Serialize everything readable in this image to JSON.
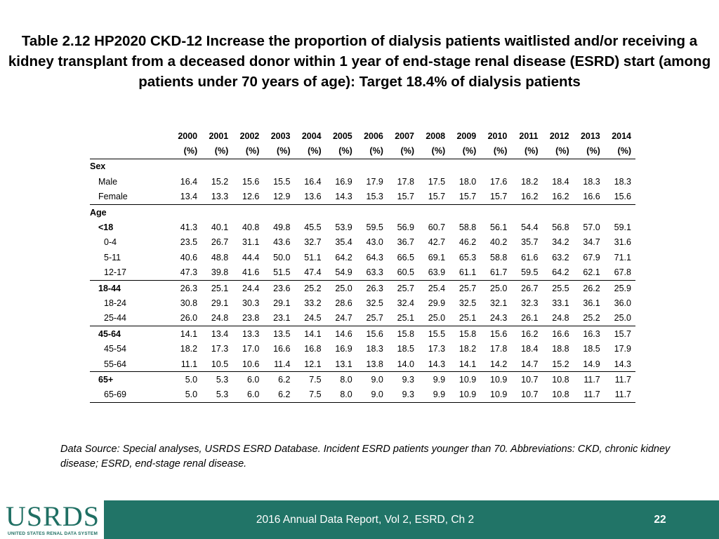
{
  "title": "Table 2.12  HP2020 CKD-12 Increase the proportion of dialysis patients waitlisted and/or receiving a kidney transplant from a deceased donor within 1 year of end-stage renal disease (ESRD) start (among patients under 70 years of age): Target 18.4% of dialysis patients",
  "table": {
    "years": [
      "2000",
      "2001",
      "2002",
      "2003",
      "2004",
      "2005",
      "2006",
      "2007",
      "2008",
      "2009",
      "2010",
      "2011",
      "2012",
      "2013",
      "2014"
    ],
    "unit": "(%)",
    "sections": [
      {
        "label": "Sex",
        "rows": [
          {
            "label": "Male",
            "values": [
              "16.4",
              "15.2",
              "15.6",
              "15.5",
              "16.4",
              "16.9",
              "17.9",
              "17.8",
              "17.5",
              "18.0",
              "17.6",
              "18.2",
              "18.4",
              "18.3",
              "18.3"
            ]
          },
          {
            "label": "Female",
            "values": [
              "13.4",
              "13.3",
              "12.6",
              "12.9",
              "13.6",
              "14.3",
              "15.3",
              "15.7",
              "15.7",
              "15.7",
              "15.7",
              "16.2",
              "16.2",
              "16.6",
              "15.6"
            ]
          }
        ]
      },
      {
        "label": "Age",
        "rows": [
          {
            "label": "<18",
            "values": [
              "41.3",
              "40.1",
              "40.8",
              "49.8",
              "45.5",
              "53.9",
              "59.5",
              "56.9",
              "60.7",
              "58.8",
              "56.1",
              "54.4",
              "56.8",
              "57.0",
              "59.1"
            ]
          },
          {
            "label": "0-4",
            "values": [
              "23.5",
              "26.7",
              "31.1",
              "43.6",
              "32.7",
              "35.4",
              "43.0",
              "36.7",
              "42.7",
              "46.2",
              "40.2",
              "35.7",
              "34.2",
              "34.7",
              "31.6"
            ]
          },
          {
            "label": "5-11",
            "values": [
              "40.6",
              "48.8",
              "44.4",
              "50.0",
              "51.1",
              "64.2",
              "64.3",
              "66.5",
              "69.1",
              "65.3",
              "58.8",
              "61.6",
              "63.2",
              "67.9",
              "71.1"
            ]
          },
          {
            "label": "12-17",
            "values": [
              "47.3",
              "39.8",
              "41.6",
              "51.5",
              "47.4",
              "54.9",
              "63.3",
              "60.5",
              "63.9",
              "61.1",
              "61.7",
              "59.5",
              "64.2",
              "62.1",
              "67.8"
            ]
          },
          {
            "label": "18-44",
            "values": [
              "26.3",
              "25.1",
              "24.4",
              "23.6",
              "25.2",
              "25.0",
              "26.3",
              "25.7",
              "25.4",
              "25.7",
              "25.0",
              "26.7",
              "25.5",
              "26.2",
              "25.9"
            ]
          },
          {
            "label": "18-24",
            "values": [
              "30.8",
              "29.1",
              "30.3",
              "29.1",
              "33.2",
              "28.6",
              "32.5",
              "32.4",
              "29.9",
              "32.5",
              "32.1",
              "32.3",
              "33.1",
              "36.1",
              "36.0"
            ]
          },
          {
            "label": "25-44",
            "values": [
              "26.0",
              "24.8",
              "23.8",
              "23.1",
              "24.5",
              "24.7",
              "25.7",
              "25.1",
              "25.0",
              "25.1",
              "24.3",
              "26.1",
              "24.8",
              "25.2",
              "25.0"
            ]
          },
          {
            "label": "45-64",
            "values": [
              "14.1",
              "13.4",
              "13.3",
              "13.5",
              "14.1",
              "14.6",
              "15.6",
              "15.8",
              "15.5",
              "15.8",
              "15.6",
              "16.2",
              "16.6",
              "16.3",
              "15.7"
            ]
          },
          {
            "label": "45-54",
            "values": [
              "18.2",
              "17.3",
              "17.0",
              "16.6",
              "16.8",
              "16.9",
              "18.3",
              "18.5",
              "17.3",
              "18.2",
              "17.8",
              "18.4",
              "18.8",
              "18.5",
              "17.9"
            ]
          },
          {
            "label": "55-64",
            "values": [
              "11.1",
              "10.5",
              "10.6",
              "11.4",
              "12.1",
              "13.1",
              "13.8",
              "14.0",
              "14.3",
              "14.1",
              "14.2",
              "14.7",
              "15.2",
              "14.9",
              "14.3"
            ]
          },
          {
            "label": "65+",
            "values": [
              "5.0",
              "5.3",
              "6.0",
              "6.2",
              "7.5",
              "8.0",
              "9.0",
              "9.3",
              "9.9",
              "10.9",
              "10.9",
              "10.7",
              "10.8",
              "11.7",
              "11.7"
            ]
          },
          {
            "label": "65-69",
            "values": [
              "5.0",
              "5.3",
              "6.0",
              "6.2",
              "7.5",
              "8.0",
              "9.0",
              "9.3",
              "9.9",
              "10.9",
              "10.9",
              "10.7",
              "10.8",
              "11.7",
              "11.7"
            ]
          }
        ]
      }
    ]
  },
  "source": "Data Source: Special analyses, USRDS ESRD Database. Incident ESRD patients younger than 70. Abbreviations: CKD, chronic kidney disease; ESRD, end-stage renal disease.",
  "footer": {
    "logo": "USRDS",
    "logo_subtitle": "UNITED STATES RENAL DATA SYSTEM",
    "text": "2016 Annual Data Report, Vol 2, ESRD, Ch 2",
    "page_number": "22"
  },
  "colors": {
    "footer_bg": "#217467",
    "logo": "#1f6f63"
  }
}
